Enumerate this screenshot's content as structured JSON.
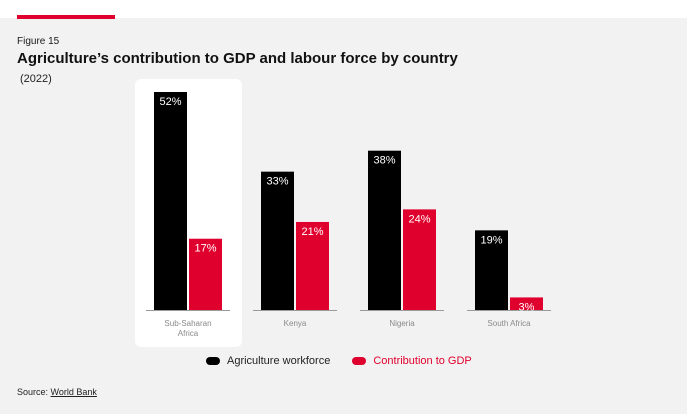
{
  "figure_label": "Figure 15",
  "title": "Agriculture’s contribution to GDP and labour force by country",
  "subtitle": "(2022)",
  "source": {
    "prefix": "Source: ",
    "name": "World Bank"
  },
  "colors": {
    "workforce": "#000000",
    "gdp": "#e0002d",
    "label": "#ffffff",
    "axis_text": "#8a8a8a"
  },
  "chart_data": {
    "type": "bar",
    "title": "Agriculture’s contribution to GDP and labour force by country",
    "subtitle": "(2022)",
    "categories": [
      "Sub-Saharan Africa",
      "Kenya",
      "Nigeria",
      "South Africa"
    ],
    "category_lines": [
      [
        "Sub-Saharan",
        "Africa"
      ],
      [
        "Kenya"
      ],
      [
        "Nigeria"
      ],
      [
        "South Africa"
      ]
    ],
    "series": [
      {
        "name": "Agriculture workforce",
        "color": "#000000",
        "values": [
          52,
          33,
          38,
          19
        ],
        "labels": [
          "52%",
          "33%",
          "38%",
          "19%"
        ]
      },
      {
        "name": "Contribution to GDP",
        "color": "#e0002d",
        "values": [
          17,
          21,
          24,
          3
        ],
        "labels": [
          "17%",
          "21%",
          "24%",
          "3%"
        ]
      }
    ],
    "highlighted_category": "Sub-Saharan Africa",
    "ylim": [
      0,
      52
    ],
    "xlabel": "",
    "ylabel": "",
    "grid": false,
    "legend": "bottom-center"
  }
}
